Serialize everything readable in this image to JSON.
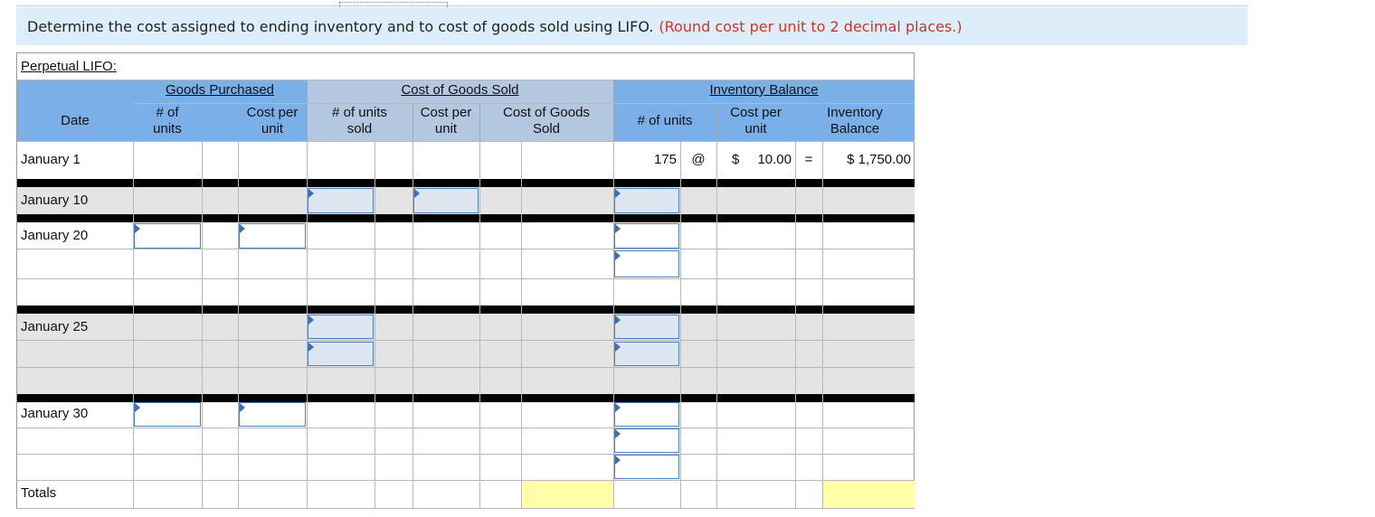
{
  "instruction": {
    "text": "Determine the cost assigned to ending inventory and to cost of goods sold using LIFO.",
    "note": "(Round cost per unit to 2 decimal places.)"
  },
  "panel_title": "Perpetual LIFO:",
  "groups": {
    "purchased": "Goods Purchased",
    "cogs": "Cost of Goods Sold",
    "inventory": "Inventory Balance"
  },
  "headers": {
    "date": "Date",
    "units_l1": "# of",
    "units_l2": "units",
    "cpu_l1": "Cost per",
    "cpu_l2": "unit",
    "units_sold_l1": "# of units",
    "units_sold_l2": "sold",
    "cogs_cpu_l1": "Cost per",
    "cogs_cpu_l2": "unit",
    "cogs_total_l1": "Cost of Goods",
    "cogs_total_l2": "Sold",
    "inv_units": "# of units",
    "inv_cpu_l1": "Cost per",
    "inv_cpu_l2": "unit",
    "inv_bal_l1": "Inventory",
    "inv_bal_l2": "Balance"
  },
  "rows": {
    "jan1": "January 1",
    "jan10": "January 10",
    "jan20": "January 20",
    "jan25": "January 25",
    "jan30": "January 30",
    "totals": "Totals"
  },
  "january1": {
    "units": "175",
    "at": "@",
    "dollar": "$",
    "cost": "10.00",
    "equals": "=",
    "balance": "$ 1,750.00"
  },
  "colors": {
    "header_blue": "#7bafe8",
    "cogs_band": "#b3c7e0",
    "gray_row": "#e4e4e4",
    "separator": "#000000",
    "total_yellow": "#ffffa8"
  }
}
